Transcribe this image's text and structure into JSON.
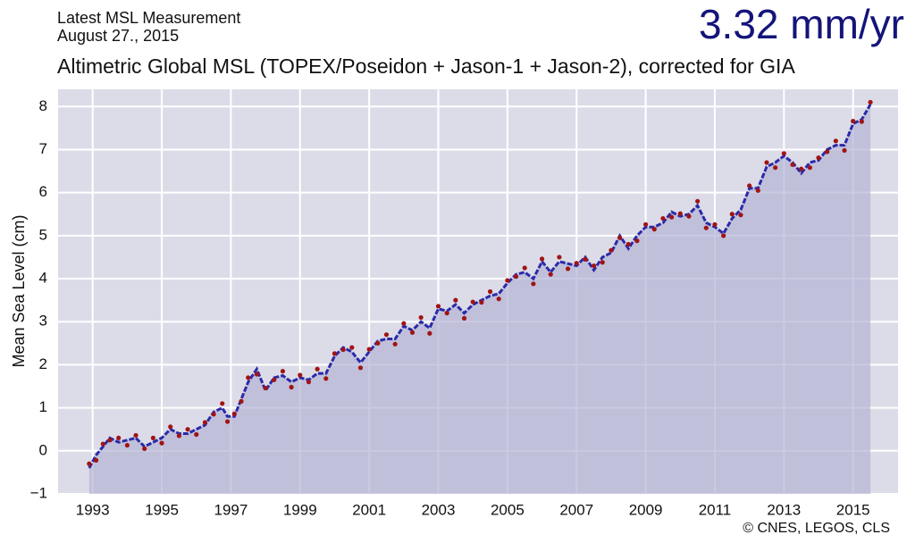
{
  "chart_data": {
    "type": "line",
    "header": [
      "Latest MSL Measurement",
      "August 27., 2015"
    ],
    "headline": "3.32 mm/yr",
    "title": "Altimetric  Global  MSL  (TOPEX/Poseidon + Jason-1 + Jason-2),  corrected for GIA",
    "y_label": "Mean Sea Level (cm)",
    "credit": "© CNES, LEGOS, CLS",
    "xlim": [
      1992,
      2016.3
    ],
    "xticks": [
      1993,
      1995,
      1997,
      1999,
      2001,
      2003,
      2005,
      2007,
      2009,
      2011,
      2013,
      2015
    ],
    "ylim": [
      -1,
      8.4
    ],
    "yticks": [
      {
        "value": -1,
        "label": "−1"
      },
      0,
      1,
      2,
      3,
      4,
      5,
      6,
      7,
      8
    ],
    "grid": true,
    "area_color": "#b4b4d6",
    "x": [
      1992.9,
      1993.1,
      1993.3,
      1993.5,
      1993.75,
      1994,
      1994.25,
      1994.5,
      1994.75,
      1995,
      1995.25,
      1995.5,
      1995.75,
      1996,
      1996.25,
      1996.5,
      1996.75,
      1996.9,
      1997.1,
      1997.3,
      1997.5,
      1997.75,
      1998,
      1998.25,
      1998.5,
      1998.75,
      1999,
      1999.25,
      1999.5,
      1999.75,
      2000,
      2000.25,
      2000.5,
      2000.75,
      2001,
      2001.25,
      2001.5,
      2001.75,
      2002,
      2002.25,
      2002.5,
      2002.75,
      2003,
      2003.25,
      2003.5,
      2003.75,
      2004,
      2004.25,
      2004.5,
      2004.75,
      2005,
      2005.25,
      2005.5,
      2005.75,
      2006,
      2006.25,
      2006.5,
      2006.75,
      2007,
      2007.25,
      2007.5,
      2007.75,
      2008,
      2008.25,
      2008.5,
      2008.75,
      2009,
      2009.25,
      2009.5,
      2009.75,
      2010,
      2010.25,
      2010.5,
      2010.75,
      2011,
      2011.25,
      2011.5,
      2011.75,
      2012,
      2012.25,
      2012.5,
      2012.75,
      2013,
      2013.25,
      2013.5,
      2013.75,
      2014,
      2014.25,
      2014.5,
      2014.75,
      2015,
      2015.25,
      2015.5
    ],
    "series": [
      {
        "color": "#2a2aa8",
        "marker": "line",
        "values": [
          -0.4,
          -0.1,
          0.1,
          0.3,
          0.2,
          0.25,
          0.3,
          0.1,
          0.2,
          0.3,
          0.5,
          0.4,
          0.4,
          0.5,
          0.6,
          0.9,
          1.0,
          0.8,
          0.8,
          1.2,
          1.6,
          1.9,
          1.4,
          1.7,
          1.75,
          1.6,
          1.7,
          1.65,
          1.8,
          1.8,
          2.2,
          2.4,
          2.3,
          2.05,
          2.3,
          2.55,
          2.6,
          2.6,
          2.9,
          2.8,
          3.0,
          2.85,
          3.3,
          3.25,
          3.4,
          3.2,
          3.4,
          3.5,
          3.6,
          3.65,
          3.9,
          4.1,
          4.15,
          4.0,
          4.4,
          4.15,
          4.4,
          4.35,
          4.3,
          4.5,
          4.2,
          4.5,
          4.6,
          5.0,
          4.7,
          5.0,
          5.2,
          5.2,
          5.3,
          5.55,
          5.45,
          5.5,
          5.7,
          5.3,
          5.2,
          5.05,
          5.4,
          5.6,
          6.1,
          6.1,
          6.6,
          6.7,
          6.85,
          6.7,
          6.45,
          6.7,
          6.75,
          7.0,
          7.1,
          7.1,
          7.6,
          7.7,
          8.05
        ]
      },
      {
        "color": "#a01414",
        "marker": "dot",
        "values": [
          -0.3,
          -0.22,
          0.16,
          0.25,
          0.3,
          0.13,
          0.36,
          0.05,
          0.3,
          0.18,
          0.56,
          0.35,
          0.5,
          0.38,
          0.66,
          0.85,
          1.1,
          0.68,
          0.86,
          1.15,
          1.7,
          1.78,
          1.46,
          1.65,
          1.85,
          1.48,
          1.76,
          1.6,
          1.9,
          1.68,
          2.26,
          2.35,
          2.4,
          1.93,
          2.36,
          2.5,
          2.7,
          2.48,
          2.96,
          2.75,
          3.1,
          2.73,
          3.36,
          3.2,
          3.5,
          3.08,
          3.46,
          3.45,
          3.7,
          3.53,
          3.96,
          4.05,
          4.25,
          3.88,
          4.46,
          4.1,
          4.5,
          4.23,
          4.36,
          4.45,
          4.3,
          4.38,
          4.66,
          4.95,
          4.8,
          4.88,
          5.26,
          5.15,
          5.4,
          5.43,
          5.51,
          5.45,
          5.8,
          5.18,
          5.26,
          5.0,
          5.5,
          5.48,
          6.16,
          6.05,
          6.7,
          6.58,
          6.91,
          6.65,
          6.55,
          6.58,
          6.81,
          6.95,
          7.2,
          6.98,
          7.66,
          7.65,
          8.1
        ]
      }
    ]
  }
}
